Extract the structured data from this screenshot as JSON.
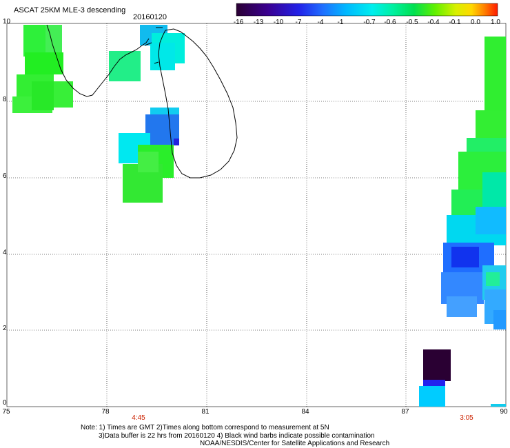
{
  "header": {
    "title": "ASCAT 25KM MLE-3 descending",
    "date": "20160120"
  },
  "colorbar": {
    "labels": [
      "-16",
      "-13",
      "-10",
      "-7",
      "-4",
      "-1",
      "-0.7",
      "-0.6",
      "-0.5",
      "-0.4",
      "-0.1",
      "0.0",
      "1.0"
    ],
    "colors": [
      "#2a0033",
      "#3a0090",
      "#2222e8",
      "#1f6eff",
      "#00b8ff",
      "#00eeee",
      "#00f0c0",
      "#00e060",
      "#40f000",
      "#b0f000",
      "#ffe800",
      "#ff8800",
      "#ff2200"
    ]
  },
  "axes": {
    "lat_labels": [
      "10",
      "8",
      "6",
      "4",
      "2",
      "0"
    ],
    "lon_labels": [
      "75",
      "78",
      "81",
      "84",
      "87",
      "90"
    ]
  },
  "pass_times": [
    "4:45",
    "3:05"
  ],
  "notes": {
    "line1": "Note: 1) Times are GMT 2)Times along bottom correspond to measurement at 5N",
    "line2": "3)Data buffer is 22 hrs from 20160120 4) Black wind barbs indicate possible contamination",
    "line3": "NOAA/NESDIS/Center for Satellite Applications and Research"
  }
}
